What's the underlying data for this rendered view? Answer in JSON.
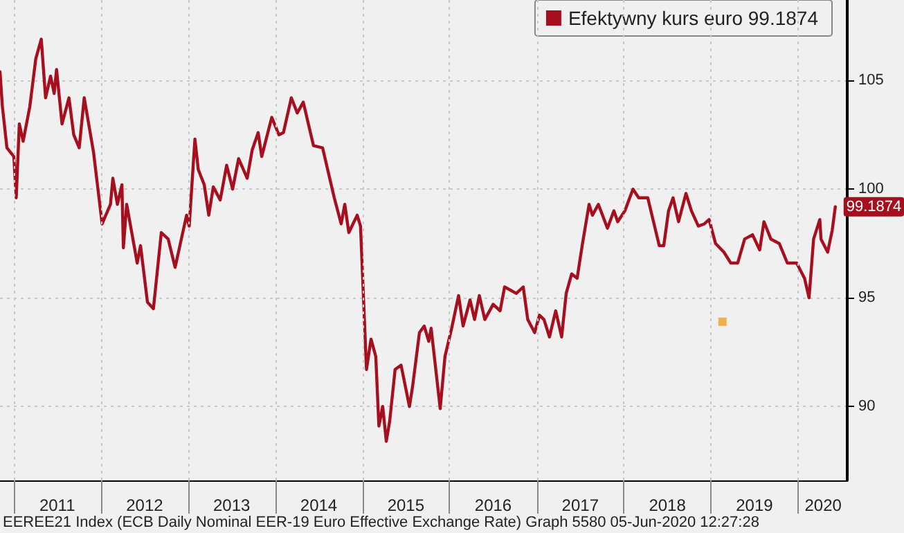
{
  "chart_data": {
    "type": "line",
    "xlim": [
      "2010-11-04",
      "2020-07-25"
    ],
    "ylim": [
      86.6,
      108.7
    ],
    "yticks": [
      90,
      95,
      100,
      105
    ],
    "xticks": [
      {
        "value": "2011-01-01",
        "label": null
      },
      {
        "value": "2011-07-02",
        "label": "2011"
      },
      {
        "value": "2012-01-01",
        "label": null
      },
      {
        "value": "2012-07-02",
        "label": "2012"
      },
      {
        "value": "2013-01-01",
        "label": null
      },
      {
        "value": "2013-07-02",
        "label": "2013"
      },
      {
        "value": "2014-01-01",
        "label": null
      },
      {
        "value": "2014-07-02",
        "label": "2014"
      },
      {
        "value": "2015-01-01",
        "label": null
      },
      {
        "value": "2015-07-02",
        "label": "2015"
      },
      {
        "value": "2016-01-01",
        "label": null
      },
      {
        "value": "2016-07-02",
        "label": "2016"
      },
      {
        "value": "2017-01-01",
        "label": null
      },
      {
        "value": "2017-07-02",
        "label": "2017"
      },
      {
        "value": "2018-01-01",
        "label": null
      },
      {
        "value": "2018-07-02",
        "label": "2018"
      },
      {
        "value": "2019-01-01",
        "label": null
      },
      {
        "value": "2019-07-02",
        "label": "2019"
      },
      {
        "value": "2020-01-01",
        "label": null
      },
      {
        "value": "2020-04-15",
        "label": "2020"
      }
    ],
    "grid": true,
    "legend": "top right",
    "line_style": "solid",
    "annotations": [
      "EEREE21 Index (ECB Daily Nominal EER-19 Euro Effective Exchange Rate) Graph 5580 05-Jun-2020 12:27:28"
    ],
    "series": [
      {
        "name": "Efektywny kurs euro 99.1874",
        "color": "#a50f1e",
        "x": [
          "2010-11-04",
          "2010-11-14",
          "2010-12-03",
          "2011-01-01",
          "2011-01-11",
          "2011-01-24",
          "2011-02-09",
          "2011-03-09",
          "2011-04-03",
          "2011-04-26",
          "2011-05-14",
          "2011-06-04",
          "2011-06-19",
          "2011-06-29",
          "2011-07-22",
          "2011-08-20",
          "2011-09-09",
          "2011-10-02",
          "2011-10-23",
          "2011-12-01",
          "2012-01-06",
          "2012-02-10",
          "2012-02-20",
          "2012-03-10",
          "2012-03-29",
          "2012-04-04",
          "2012-04-18",
          "2012-06-01",
          "2012-06-15",
          "2012-07-14",
          "2012-08-08",
          "2012-09-10",
          "2012-10-09",
          "2012-11-07",
          "2012-12-25",
          "2013-01-05",
          "2013-01-29",
          "2013-02-12",
          "2013-03-09",
          "2013-03-28",
          "2013-04-16",
          "2013-05-15",
          "2013-06-11",
          "2013-07-06",
          "2013-07-31",
          "2013-09-05",
          "2013-09-26",
          "2013-10-21",
          "2013-11-05",
          "2013-12-17",
          "2014-01-16",
          "2014-02-04",
          "2014-03-09",
          "2014-04-03",
          "2014-04-28",
          "2014-06-10",
          "2014-07-18",
          "2014-09-05",
          "2014-10-04",
          "2014-10-19",
          "2014-11-05",
          "2014-12-10",
          "2014-12-24",
          "2015-01-18",
          "2015-02-06",
          "2015-02-26",
          "2015-03-11",
          "2015-03-27",
          "2015-04-11",
          "2015-04-25",
          "2015-05-18",
          "2015-06-12",
          "2015-07-17",
          "2015-07-30",
          "2015-08-28",
          "2015-09-17",
          "2015-10-06",
          "2015-10-16",
          "2015-11-23",
          "2015-12-13",
          "2016-01-10",
          "2016-02-08",
          "2016-02-27",
          "2016-03-27",
          "2016-04-15",
          "2016-05-05",
          "2016-05-28",
          "2016-07-02",
          "2016-07-31",
          "2016-08-19",
          "2016-10-07",
          "2016-11-05",
          "2016-11-24",
          "2016-12-23",
          "2017-01-12",
          "2017-01-31",
          "2017-02-23",
          "2017-03-21",
          "2017-04-15",
          "2017-05-04",
          "2017-05-27",
          "2017-06-19",
          "2017-07-10",
          "2017-08-08",
          "2017-08-22",
          "2017-09-16",
          "2017-10-24",
          "2017-11-20",
          "2017-12-06",
          "2018-01-05",
          "2018-02-08",
          "2018-03-04",
          "2018-04-11",
          "2018-05-29",
          "2018-06-17",
          "2018-07-07",
          "2018-07-26",
          "2018-08-18",
          "2018-09-18",
          "2018-10-11",
          "2018-11-09",
          "2018-12-04",
          "2018-12-24",
          "2019-01-20",
          "2019-02-24",
          "2019-03-25",
          "2019-04-23",
          "2019-05-22",
          "2019-06-24",
          "2019-07-24",
          "2019-08-11",
          "2019-09-09",
          "2019-10-14",
          "2019-11-17",
          "2019-12-26",
          "2020-01-28",
          "2020-02-16",
          "2020-03-06",
          "2020-04-01",
          "2020-04-06",
          "2020-05-04",
          "2020-05-23",
          "2020-06-05"
        ],
        "values": [
          105.4,
          103.8,
          101.9,
          101.5,
          99.6,
          103.0,
          102.2,
          103.8,
          106.0,
          106.9,
          104.2,
          105.2,
          104.4,
          105.5,
          103.0,
          104.2,
          102.5,
          101.9,
          104.2,
          101.7,
          98.4,
          99.3,
          100.5,
          99.3,
          100.2,
          97.3,
          99.3,
          96.6,
          97.4,
          94.8,
          94.5,
          98.0,
          97.7,
          96.4,
          98.8,
          98.3,
          102.3,
          100.9,
          100.2,
          98.8,
          100.1,
          99.5,
          101.1,
          100.0,
          101.4,
          100.5,
          101.8,
          102.6,
          101.5,
          103.3,
          102.5,
          102.6,
          104.2,
          103.5,
          104.0,
          102.0,
          101.9,
          99.6,
          98.4,
          99.3,
          98.0,
          98.8,
          98.3,
          91.7,
          93.1,
          92.3,
          89.1,
          90.0,
          88.4,
          89.3,
          91.7,
          91.9,
          90.0,
          90.9,
          93.4,
          93.7,
          93.0,
          93.6,
          89.9,
          92.3,
          93.6,
          95.1,
          93.7,
          94.9,
          94.0,
          95.1,
          94.0,
          94.7,
          94.4,
          95.5,
          95.2,
          95.5,
          94.0,
          93.4,
          94.2,
          94.0,
          93.2,
          94.4,
          93.2,
          95.2,
          96.1,
          95.9,
          97.4,
          99.3,
          98.8,
          99.3,
          98.2,
          99.0,
          98.5,
          99.0,
          100.0,
          99.6,
          99.6,
          97.4,
          97.4,
          99.0,
          99.6,
          98.5,
          99.8,
          99.0,
          98.3,
          98.4,
          98.6,
          97.5,
          97.1,
          96.6,
          96.6,
          97.7,
          97.9,
          97.2,
          98.5,
          97.7,
          97.5,
          96.6,
          96.6,
          95.9,
          95.0,
          97.7,
          98.6,
          97.7,
          97.1,
          98.1,
          99.1874
        ],
        "value_labels": [
          null,
          null,
          null,
          null,
          null,
          null,
          null,
          null,
          null,
          null,
          null,
          null,
          null,
          null,
          null,
          null,
          null,
          null,
          null,
          null,
          null,
          null,
          null,
          null,
          null,
          null,
          null,
          null,
          null,
          null,
          null,
          null,
          null,
          null,
          null,
          null,
          null,
          null,
          null,
          null,
          null,
          null,
          null,
          null,
          null,
          null,
          null,
          null,
          null,
          null,
          null,
          null,
          null,
          null,
          null,
          null,
          null,
          null,
          null,
          null,
          null,
          null,
          null,
          null,
          null,
          null,
          null,
          null,
          null,
          null,
          null,
          null,
          null,
          null,
          null,
          null,
          null,
          null,
          null,
          null,
          null,
          null,
          null,
          null,
          null,
          null,
          null,
          null,
          null,
          null,
          null,
          null,
          null,
          null,
          null,
          null,
          null,
          null,
          null,
          null,
          null,
          null,
          null,
          null,
          null,
          null,
          null,
          null,
          null,
          null,
          null,
          null,
          null,
          null,
          null,
          null,
          null,
          null,
          null,
          null,
          null,
          null,
          null,
          null,
          null,
          null,
          null,
          null,
          null,
          null,
          null,
          null,
          null,
          null,
          null,
          null,
          null,
          null,
          null,
          null,
          null,
          null,
          "99.1874"
        ]
      },
      {
        "type": "scatter",
        "marker": "square",
        "color": "#f0a020",
        "x": [
          "2019-02-18"
        ],
        "values": [
          93.9
        ]
      }
    ]
  }
}
